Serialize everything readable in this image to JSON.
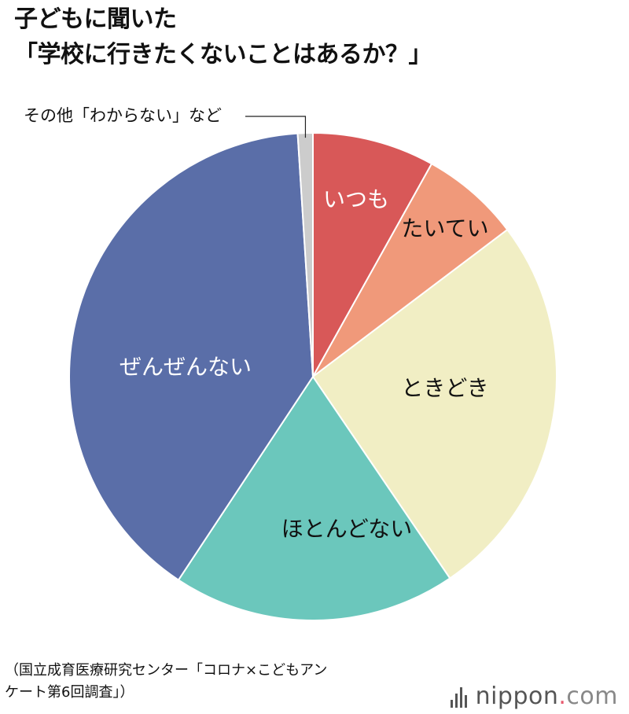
{
  "title": [
    "子どもに聞いた",
    "「学校に行きたくないことはあるか？」"
  ],
  "source": [
    "（国立成育医療研究センター「コロナ×こどもアン",
    "ケート第6回調査」）"
  ],
  "brand": {
    "name": "nippon",
    "dot": ".",
    "tld": "com"
  },
  "chart_data": {
    "type": "pie",
    "title": "子どもに聞いた「学校に行きたくないことはあるか？」",
    "start": "12 o'clock",
    "direction": "clockwise",
    "slices": [
      {
        "label": "いつも",
        "value": 8.1,
        "color": "#d85858",
        "text_color": "#ffffff"
      },
      {
        "label": "たいてい",
        "value": 6.6,
        "color": "#f0997a",
        "text_color": "#111111"
      },
      {
        "label": "ときどき",
        "value": 25.8,
        "color": "#f1eec4",
        "text_color": "#111111"
      },
      {
        "label": "ほとんどない",
        "value": 18.8,
        "color": "#6bc7bc",
        "text_color": "#111111"
      },
      {
        "label": "ぜんぜんない",
        "value": 39.7,
        "color": "#5a6ea8",
        "text_color": "#ffffff"
      },
      {
        "label": "その他「わからない」など",
        "value": 1.0,
        "color": "#cccccc",
        "text_color": "#111111"
      }
    ]
  }
}
